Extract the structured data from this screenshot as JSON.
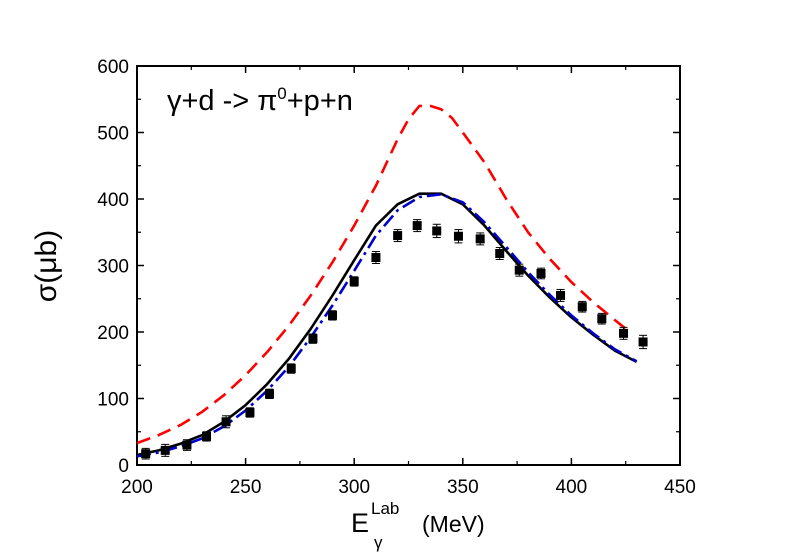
{
  "chart_data": {
    "type": "line",
    "title": "",
    "annotation": {
      "prefix": "γ+d -> π",
      "superscript": "0",
      "suffix": "+p+n"
    },
    "xlabel": {
      "main": "E",
      "subscript": "γ",
      "superscript": "Lab",
      "unit": "(MeV)"
    },
    "ylabel": "σ(μb)",
    "xlim": [
      200,
      450
    ],
    "ylim": [
      0,
      600
    ],
    "xticks": [
      200,
      250,
      300,
      350,
      400,
      450
    ],
    "yticks": [
      0,
      100,
      200,
      300,
      400,
      500,
      600
    ],
    "grid": false,
    "series": [
      {
        "style": "dashed",
        "color": "#ff0000",
        "x": [
          200,
          210,
          220,
          230,
          240,
          250,
          260,
          270,
          280,
          290,
          300,
          310,
          320,
          325,
          330,
          335,
          340,
          345,
          350,
          360,
          370,
          380,
          390,
          400,
          410,
          420,
          425
        ],
        "y": [
          33,
          45,
          60,
          80,
          105,
          135,
          170,
          210,
          255,
          305,
          360,
          420,
          490,
          520,
          540,
          540,
          535,
          522,
          500,
          455,
          400,
          350,
          310,
          275,
          245,
          218,
          205
        ]
      },
      {
        "style": "solid",
        "color": "#000000",
        "x": [
          200,
          210,
          220,
          230,
          240,
          250,
          260,
          270,
          280,
          290,
          300,
          310,
          320,
          330,
          340,
          350,
          360,
          370,
          380,
          390,
          400,
          410,
          420,
          430
        ],
        "y": [
          15,
          22,
          32,
          45,
          65,
          90,
          122,
          160,
          205,
          255,
          308,
          360,
          392,
          408,
          408,
          392,
          360,
          322,
          285,
          252,
          222,
          196,
          172,
          155
        ]
      },
      {
        "style": "dash-dot",
        "color": "#0000cc",
        "x": [
          200,
          210,
          220,
          230,
          240,
          250,
          260,
          270,
          280,
          290,
          300,
          310,
          320,
          330,
          340,
          350,
          360,
          370,
          380,
          390,
          400,
          410,
          420,
          430
        ],
        "y": [
          13,
          19,
          28,
          40,
          58,
          82,
          112,
          148,
          192,
          240,
          292,
          345,
          383,
          403,
          407,
          395,
          365,
          328,
          290,
          256,
          225,
          198,
          174,
          156
        ]
      }
    ],
    "points": {
      "marker": "square",
      "color": "#000000",
      "x": [
        204,
        213,
        223,
        232,
        241,
        252,
        261,
        271,
        281,
        290,
        300,
        310,
        320,
        329,
        338,
        348,
        358,
        367,
        376,
        386,
        395,
        405,
        414,
        424,
        433
      ],
      "y": [
        17,
        22,
        30,
        43,
        65,
        79,
        107,
        145,
        190,
        225,
        276,
        312,
        345,
        360,
        352,
        344,
        340,
        318,
        293,
        288,
        255,
        238,
        220,
        198,
        185
      ],
      "err": [
        8,
        9,
        8,
        7,
        9,
        7,
        7,
        7,
        7,
        7,
        7,
        9,
        9,
        9,
        10,
        10,
        9,
        9,
        9,
        8,
        9,
        8,
        8,
        9,
        10
      ]
    }
  }
}
